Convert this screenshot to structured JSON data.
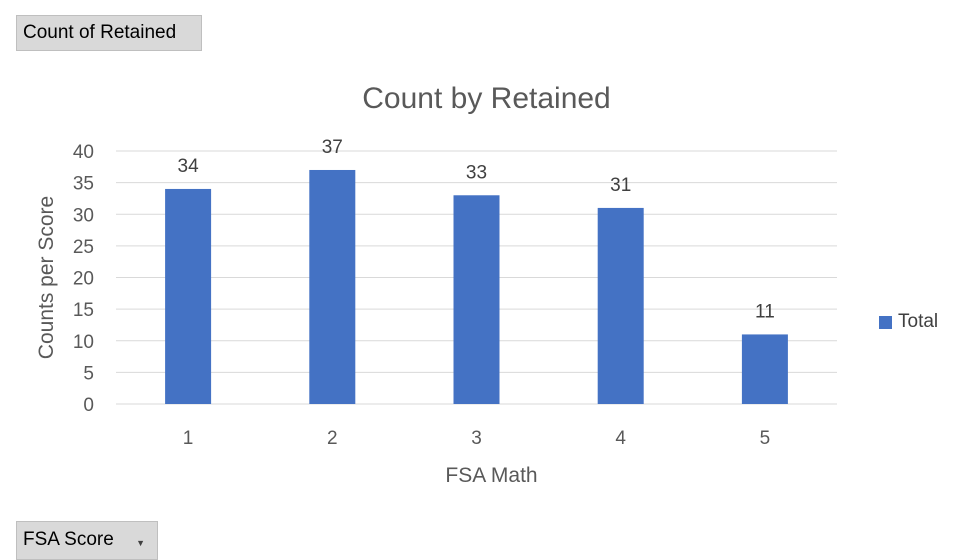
{
  "pivot": {
    "value_field": "Count of Retained",
    "axis_field": "FSA Score"
  },
  "chart_data": {
    "type": "bar",
    "title": "Count by Retained",
    "xlabel": "FSA Math",
    "ylabel": "Counts per Score",
    "categories": [
      "1",
      "2",
      "3",
      "4",
      "5"
    ],
    "series": [
      {
        "name": "Total",
        "values": [
          34,
          37,
          33,
          31,
          11
        ],
        "color": "#4472c4"
      }
    ],
    "ylim": [
      0,
      40
    ],
    "yticks": [
      0,
      5,
      10,
      15,
      20,
      25,
      30,
      35,
      40
    ],
    "grid": true,
    "data_labels": true,
    "legend_position": "right"
  }
}
